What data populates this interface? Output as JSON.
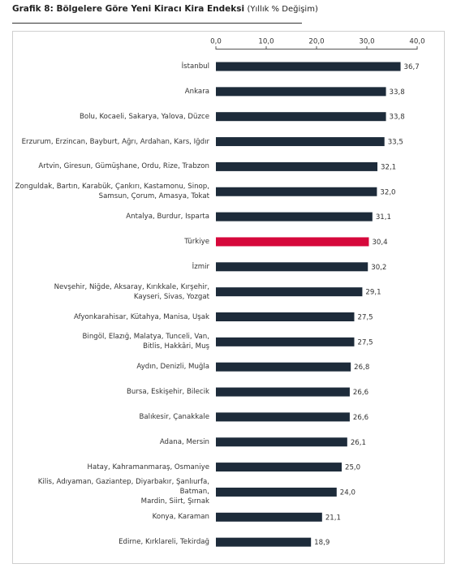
{
  "chart_data": {
    "type": "bar",
    "orientation": "horizontal",
    "title": "Grafik 8: Bölgelere Göre Yeni Kiracı Kira Endeksi",
    "subtitle": "(Yıllık % Değişim)",
    "categories": [
      "İstanbul",
      "Ankara",
      "Bolu, Kocaeli, Sakarya, Yalova, Düzce",
      "Erzurum, Erzincan, Bayburt, Ağrı, Ardahan, Kars, Iğdır",
      "Artvin, Giresun, Gümüşhane, Ordu, Rize, Trabzon",
      "Zonguldak, Bartın, Karabük, Çankırı, Kastamonu, Sinop,\nSamsun, Çorum, Amasya, Tokat",
      "Antalya, Burdur, Isparta",
      "Türkiye",
      "İzmir",
      "Nevşehir, Niğde, Aksaray, Kırıkkale, Kırşehir,\nKayseri, Sivas, Yozgat",
      "Afyonkarahisar, Kütahya, Manisa, Uşak",
      "Bingöl, Elazığ, Malatya, Tunceli, Van,\nBitlis, Hakkâri, Muş",
      "Aydın, Denizli, Muğla",
      "Bursa, Eskişehir, Bilecik",
      "Balıkesir, Çanakkale",
      "Adana, Mersin",
      "Hatay, Kahramanmaraş, Osmaniye",
      "Kilis, Adıyaman, Gaziantep, Diyarbakır, Şanlıurfa, Batman,\nMardin, Siirt, Şırnak",
      "Konya, Karaman",
      "Edirne, Kırklareli, Tekirdağ"
    ],
    "values": [
      36.7,
      33.8,
      33.8,
      33.5,
      32.1,
      32.0,
      31.1,
      30.4,
      30.2,
      29.1,
      27.5,
      27.5,
      26.8,
      26.6,
      26.6,
      26.1,
      25.0,
      24.0,
      21.1,
      18.9
    ],
    "value_labels": [
      "36,7",
      "33,8",
      "33,8",
      "33,5",
      "32,1",
      "32,0",
      "31,1",
      "30,4",
      "30,2",
      "29,1",
      "27,5",
      "27,5",
      "26,8",
      "26,6",
      "26,6",
      "26,1",
      "25,0",
      "24,0",
      "21,1",
      "18,9"
    ],
    "colors": [
      "#1d2b3a",
      "#1d2b3a",
      "#1d2b3a",
      "#1d2b3a",
      "#1d2b3a",
      "#1d2b3a",
      "#1d2b3a",
      "#d6083b",
      "#1d2b3a",
      "#1d2b3a",
      "#1d2b3a",
      "#1d2b3a",
      "#1d2b3a",
      "#1d2b3a",
      "#1d2b3a",
      "#1d2b3a",
      "#1d2b3a",
      "#1d2b3a",
      "#1d2b3a",
      "#1d2b3a"
    ],
    "xlim": [
      0,
      40
    ],
    "xticks": [
      {
        "value": 0,
        "label": "0,0"
      },
      {
        "value": 10,
        "label": "10,0"
      },
      {
        "value": 20,
        "label": "20,0"
      },
      {
        "value": 30,
        "label": "30,0"
      },
      {
        "value": 40,
        "label": "40,0"
      }
    ],
    "grid": false
  }
}
